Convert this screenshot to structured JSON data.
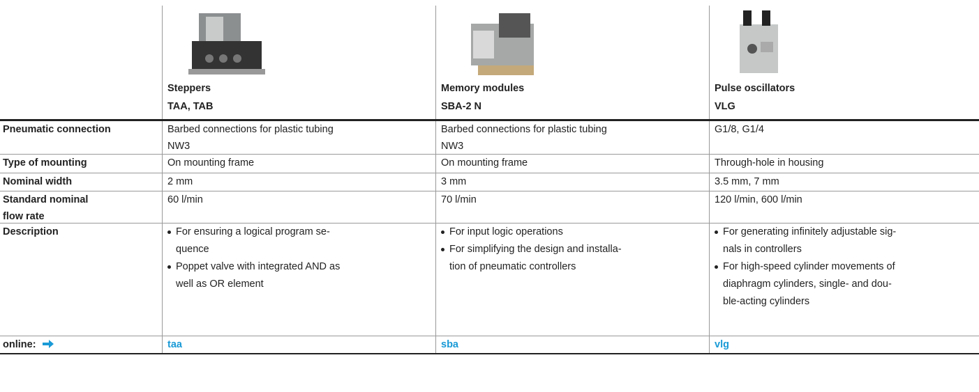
{
  "header": {
    "columns": [
      {
        "name": "Steppers",
        "code": "TAA, TAB"
      },
      {
        "name": "Memory modules",
        "code": "SBA-2 N"
      },
      {
        "name": "Pulse oscillators",
        "code": "VLG"
      }
    ]
  },
  "table": {
    "rows": [
      {
        "label": [
          "Pneumatic connection"
        ],
        "cells": [
          {
            "lines": [
              "Barbed connections for plastic tubing",
              "NW3"
            ]
          },
          {
            "lines": [
              "Barbed connections for plastic tubing",
              "NW3"
            ]
          },
          {
            "lines": [
              "G1/8, G1/4"
            ]
          }
        ]
      },
      {
        "label": [
          "Type of mounting"
        ],
        "cells": [
          {
            "lines": [
              "On mounting frame"
            ]
          },
          {
            "lines": [
              "On mounting frame"
            ]
          },
          {
            "lines": [
              "Through-hole in housing"
            ]
          }
        ]
      },
      {
        "label": [
          "Nominal width"
        ],
        "cells": [
          {
            "lines": [
              "2 mm"
            ]
          },
          {
            "lines": [
              "3 mm"
            ]
          },
          {
            "lines": [
              "3.5 mm, 7 mm"
            ]
          }
        ]
      },
      {
        "label": [
          "Standard nominal",
          "flow rate"
        ],
        "cells": [
          {
            "lines": [
              "60 l/min"
            ]
          },
          {
            "lines": [
              "70 l/min"
            ]
          },
          {
            "lines": [
              "120 l/min, 600 l/min"
            ]
          }
        ]
      },
      {
        "label": [
          "Description"
        ],
        "cells": [
          {
            "bullets": [
              [
                "For ensuring a logical program se-",
                "quence"
              ],
              [
                "Poppet valve with integrated AND as",
                "well as OR element"
              ]
            ]
          },
          {
            "bullets": [
              [
                "For input logic operations"
              ],
              [
                "For simplifying the design and installa-",
                "tion of pneumatic controllers"
              ]
            ]
          },
          {
            "bullets": [
              [
                "For generating infinitely adjustable sig-",
                "nals in controllers"
              ],
              [
                "For high-speed cylinder movements of",
                "diaphragm cylinders, single- and dou-",
                "ble-acting cylinders"
              ]
            ]
          }
        ]
      },
      {
        "label": [
          "online:"
        ],
        "cells": [
          {
            "link": "taa"
          },
          {
            "link": "sba"
          },
          {
            "link": "vlg"
          }
        ]
      }
    ]
  }
}
